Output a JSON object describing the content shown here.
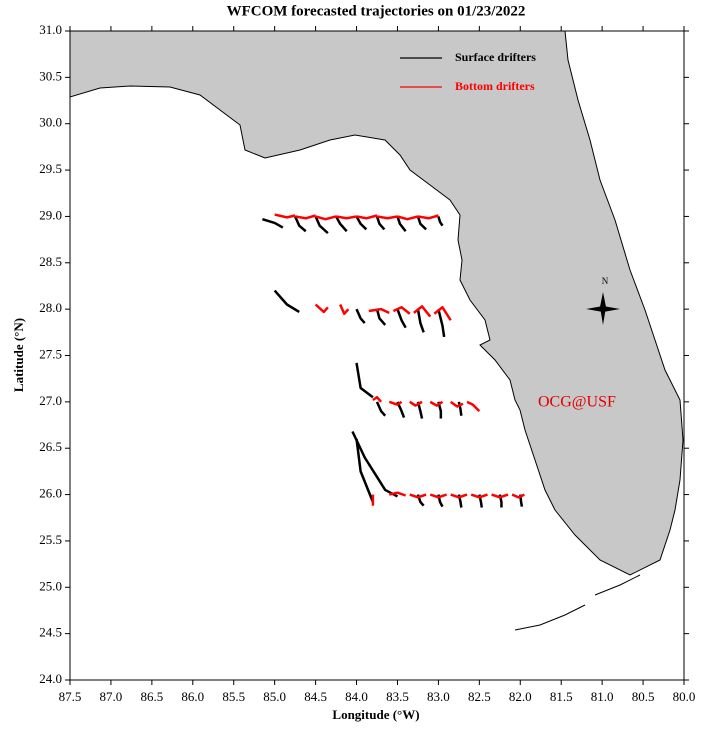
{
  "chart_data": {
    "type": "trajectory",
    "title": "WFCOM forecasted trajectories on 01/23/2022",
    "x_label": "Longitude (°W)",
    "y_label": "Latitude (°N)",
    "annotation": "OCG@USF",
    "compass_label": "N",
    "xlim": [
      87.5,
      80.0
    ],
    "ylim": [
      24.0,
      31.0
    ],
    "xticks": [
      87.5,
      {
        "value": 87,
        "label": "87.0"
      },
      86.5,
      {
        "value": 86,
        "label": "86.0"
      },
      85.5,
      {
        "value": 85,
        "label": "85.0"
      },
      84.5,
      {
        "value": 84,
        "label": "84.0"
      },
      83.5,
      {
        "value": 83,
        "label": "83.0"
      },
      82.5,
      {
        "value": 82,
        "label": "82.0"
      },
      81.5,
      {
        "value": 81,
        "label": "81.0"
      },
      80.5,
      {
        "value": 80,
        "label": "80.0"
      }
    ],
    "yticks": [
      {
        "value": 24,
        "label": "24.0"
      },
      24.5,
      {
        "value": 25,
        "label": "25.0"
      },
      25.5,
      {
        "value": 26,
        "label": "26.0"
      },
      26.5,
      {
        "value": 27,
        "label": "27.0"
      },
      27.5,
      {
        "value": 28,
        "label": "28.0"
      },
      28.5,
      {
        "value": 29,
        "label": "29.0"
      },
      29.5,
      {
        "value": 30,
        "label": "30.0"
      },
      30.5,
      {
        "value": 31,
        "label": "31.0"
      }
    ],
    "series": [
      {
        "name": "Surface drifters",
        "color": "#000000",
        "tracks": [
          {
            "x": [
              85.15,
              85.0,
              84.9
            ],
            "y": [
              28.97,
              28.93,
              28.88
            ]
          },
          {
            "x": [
              84.75,
              84.7,
              84.62
            ],
            "y": [
              29.0,
              28.9,
              28.84
            ]
          },
          {
            "x": [
              84.5,
              84.45,
              84.35
            ],
            "y": [
              29.0,
              28.9,
              28.82
            ]
          },
          {
            "x": [
              84.25,
              84.2,
              84.12
            ],
            "y": [
              29.0,
              28.92,
              28.84
            ]
          },
          {
            "x": [
              84.0,
              83.95,
              83.88
            ],
            "y": [
              29.0,
              28.92,
              28.86
            ]
          },
          {
            "x": [
              83.75,
              83.72,
              83.66
            ],
            "y": [
              29.0,
              28.92,
              28.86
            ]
          },
          {
            "x": [
              83.5,
              83.47,
              83.4
            ],
            "y": [
              29.0,
              28.92,
              28.84
            ]
          },
          {
            "x": [
              83.25,
              83.22,
              83.15
            ],
            "y": [
              29.0,
              28.92,
              28.86
            ]
          },
          {
            "x": [
              83.0,
              82.98,
              82.95
            ],
            "y": [
              29.0,
              28.94,
              28.9
            ]
          },
          {
            "x": [
              85.0,
              84.85,
              84.7
            ],
            "y": [
              28.2,
              28.05,
              27.97
            ]
          },
          {
            "x": [
              84.0,
              83.95,
              83.9
            ],
            "y": [
              28.0,
              27.9,
              27.85
            ]
          },
          {
            "x": [
              83.75,
              83.72,
              83.65
            ],
            "y": [
              28.0,
              27.9,
              27.83
            ]
          },
          {
            "x": [
              83.5,
              83.45,
              83.4
            ],
            "y": [
              28.0,
              27.88,
              27.8
            ]
          },
          {
            "x": [
              83.25,
              83.22,
              83.18
            ],
            "y": [
              28.0,
              27.85,
              27.75
            ]
          },
          {
            "x": [
              83.0,
              82.95,
              82.93
            ],
            "y": [
              28.0,
              27.82,
              27.7
            ]
          },
          {
            "x": [
              84.0,
              83.95,
              83.8
            ],
            "y": [
              27.42,
              27.15,
              27.05
            ]
          },
          {
            "x": [
              83.75,
              83.7,
              83.65
            ],
            "y": [
              27.0,
              26.9,
              26.85
            ]
          },
          {
            "x": [
              83.5,
              83.45,
              83.42
            ],
            "y": [
              27.0,
              26.9,
              26.83
            ]
          },
          {
            "x": [
              83.25,
              83.22,
              83.2
            ],
            "y": [
              27.0,
              26.9,
              26.82
            ]
          },
          {
            "x": [
              83.0,
              82.97,
              82.97
            ],
            "y": [
              27.0,
              26.9,
              26.82
            ]
          },
          {
            "x": [
              82.75,
              82.73,
              82.72
            ],
            "y": [
              27.0,
              26.92,
              26.85
            ]
          },
          {
            "x": [
              84.0,
              83.95,
              83.8
            ],
            "y": [
              26.6,
              26.25,
              25.92
            ]
          },
          {
            "x": [
              84.05,
              83.9,
              83.65,
              83.5
            ],
            "y": [
              26.68,
              26.4,
              26.05,
              25.98
            ]
          },
          {
            "x": [
              83.25,
              83.22,
              83.18
            ],
            "y": [
              26.0,
              25.92,
              25.88
            ]
          },
          {
            "x": [
              83.0,
              82.98,
              82.95
            ],
            "y": [
              26.0,
              25.92,
              25.87
            ]
          },
          {
            "x": [
              82.75,
              82.73,
              82.72
            ],
            "y": [
              26.0,
              25.92,
              25.86
            ]
          },
          {
            "x": [
              82.5,
              82.48,
              82.47
            ],
            "y": [
              26.0,
              25.92,
              25.86
            ]
          },
          {
            "x": [
              82.25,
              82.23,
              82.23
            ],
            "y": [
              26.0,
              25.92,
              25.86
            ]
          },
          {
            "x": [
              82.0,
              81.99,
              81.98
            ],
            "y": [
              26.0,
              25.92,
              25.87
            ]
          }
        ]
      },
      {
        "name": "Bottom drifters",
        "color": "#ff0000",
        "tracks": [
          {
            "x": [
              85.0,
              84.85,
              84.75
            ],
            "y": [
              29.02,
              28.99,
              29.01
            ]
          },
          {
            "x": [
              84.75,
              84.62,
              84.5
            ],
            "y": [
              29.0,
              28.98,
              29.01
            ]
          },
          {
            "x": [
              84.5,
              84.38,
              84.25
            ],
            "y": [
              29.0,
              28.97,
              29.0
            ]
          },
          {
            "x": [
              84.25,
              84.12,
              84.0
            ],
            "y": [
              29.0,
              28.98,
              29.0
            ]
          },
          {
            "x": [
              84.0,
              83.88,
              83.75
            ],
            "y": [
              29.0,
              28.98,
              29.01
            ]
          },
          {
            "x": [
              83.75,
              83.62,
              83.5
            ],
            "y": [
              29.0,
              28.98,
              29.0
            ]
          },
          {
            "x": [
              83.5,
              83.38,
              83.25
            ],
            "y": [
              29.0,
              28.97,
              29.0
            ]
          },
          {
            "x": [
              83.25,
              83.12,
              83.0
            ],
            "y": [
              29.0,
              28.98,
              29.01
            ]
          },
          {
            "x": [
              84.5,
              84.4,
              84.35
            ],
            "y": [
              28.05,
              27.97,
              28.02
            ]
          },
          {
            "x": [
              84.2,
              84.15,
              84.1
            ],
            "y": [
              28.05,
              27.95,
              28.0
            ]
          },
          {
            "x": [
              83.85,
              83.7,
              83.6
            ],
            "y": [
              27.98,
              28.0,
              27.96
            ]
          },
          {
            "x": [
              83.55,
              83.45,
              83.35
            ],
            "y": [
              27.98,
              28.02,
              27.95
            ]
          },
          {
            "x": [
              83.3,
              83.2,
              83.1
            ],
            "y": [
              27.96,
              28.03,
              27.92
            ]
          },
          {
            "x": [
              83.05,
              82.95,
              82.85
            ],
            "y": [
              27.95,
              28.02,
              27.88
            ]
          },
          {
            "x": [
              83.8,
              83.75,
              83.7
            ],
            "y": [
              27.02,
              27.05,
              27.0
            ]
          },
          {
            "x": [
              83.6,
              83.5,
              83.45
            ],
            "y": [
              27.0,
              26.97,
              27.0
            ]
          },
          {
            "x": [
              83.35,
              83.28,
              83.2
            ],
            "y": [
              27.0,
              26.96,
              27.0
            ]
          },
          {
            "x": [
              83.1,
              83.02,
              82.95
            ],
            "y": [
              27.0,
              26.96,
              27.0
            ]
          },
          {
            "x": [
              82.85,
              82.77,
              82.7
            ],
            "y": [
              27.0,
              26.95,
              26.98
            ]
          },
          {
            "x": [
              82.65,
              82.58,
              82.5
            ],
            "y": [
              27.0,
              26.97,
              26.9
            ]
          },
          {
            "x": [
              83.8,
              83.8,
              83.8
            ],
            "y": [
              26.0,
              25.95,
              25.88
            ]
          },
          {
            "x": [
              83.6,
              83.5,
              83.4
            ],
            "y": [
              26.0,
              26.02,
              25.99
            ]
          },
          {
            "x": [
              83.35,
              83.25,
              83.15
            ],
            "y": [
              26.0,
              25.97,
              26.0
            ]
          },
          {
            "x": [
              83.1,
              83.0,
              82.9
            ],
            "y": [
              26.0,
              25.97,
              26.0
            ]
          },
          {
            "x": [
              82.85,
              82.75,
              82.65
            ],
            "y": [
              26.0,
              25.97,
              26.0
            ]
          },
          {
            "x": [
              82.6,
              82.5,
              82.4
            ],
            "y": [
              26.0,
              25.97,
              26.0
            ]
          },
          {
            "x": [
              82.35,
              82.25,
              82.15
            ],
            "y": [
              26.0,
              25.97,
              26.0
            ]
          },
          {
            "x": [
              82.1,
              82.02,
              81.95
            ],
            "y": [
              26.0,
              25.97,
              26.0
            ]
          }
        ]
      }
    ]
  }
}
